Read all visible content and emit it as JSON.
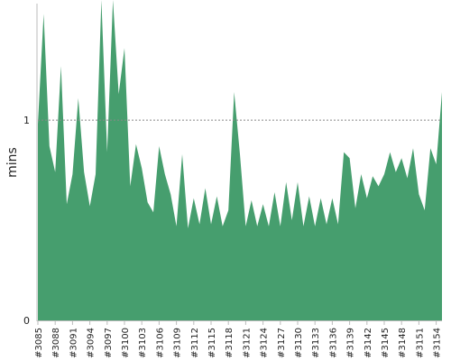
{
  "chart_data": {
    "type": "area",
    "ylabel": "mins",
    "ylim": [
      0,
      1.6
    ],
    "y_ticks": [
      0,
      1
    ],
    "y_tick_labels": [
      "0",
      "1"
    ],
    "reference_line": 1,
    "x_labels": [
      "#3085",
      "#3088",
      "#3091",
      "#3094",
      "#3097",
      "#3100",
      "#3103",
      "#3106",
      "#3109",
      "#3112",
      "#3115",
      "#3118",
      "#3121",
      "#3124",
      "#3127",
      "#3130",
      "#3133",
      "#3136",
      "#3139",
      "#3142",
      "#3145",
      "#3148",
      "#3151",
      "#3154"
    ],
    "x": [
      3085,
      3086,
      3087,
      3088,
      3089,
      3090,
      3091,
      3092,
      3093,
      3094,
      3095,
      3096,
      3097,
      3098,
      3099,
      3100,
      3101,
      3102,
      3103,
      3104,
      3105,
      3106,
      3107,
      3108,
      3109,
      3110,
      3111,
      3112,
      3113,
      3114,
      3115,
      3116,
      3117,
      3118,
      3119,
      3120,
      3121,
      3122,
      3123,
      3124,
      3125,
      3126,
      3127,
      3128,
      3129,
      3130,
      3131,
      3132,
      3133,
      3134,
      3135,
      3136,
      3137,
      3138,
      3139,
      3140,
      3141,
      3142,
      3143,
      3144,
      3145,
      3146,
      3147,
      3148,
      3149,
      3150,
      3151,
      3152,
      3153,
      3154,
      3155
    ],
    "values": [
      0.98,
      1.53,
      0.87,
      0.74,
      1.27,
      0.58,
      0.73,
      1.11,
      0.74,
      0.57,
      0.73,
      1.66,
      0.84,
      1.66,
      1.13,
      1.36,
      0.67,
      0.88,
      0.76,
      0.59,
      0.54,
      0.87,
      0.73,
      0.63,
      0.47,
      0.83,
      0.46,
      0.61,
      0.48,
      0.66,
      0.48,
      0.62,
      0.47,
      0.55,
      1.14,
      0.83,
      0.47,
      0.6,
      0.47,
      0.58,
      0.47,
      0.64,
      0.47,
      0.69,
      0.5,
      0.69,
      0.47,
      0.62,
      0.47,
      0.61,
      0.48,
      0.61,
      0.48,
      0.84,
      0.81,
      0.56,
      0.73,
      0.61,
      0.72,
      0.67,
      0.73,
      0.84,
      0.74,
      0.81,
      0.71,
      0.86,
      0.63,
      0.55,
      0.86,
      0.78,
      1.14
    ],
    "grid": false,
    "colors": {
      "area": "#469e6e",
      "axis": "#bbbbbb",
      "reference": "#888888"
    }
  }
}
